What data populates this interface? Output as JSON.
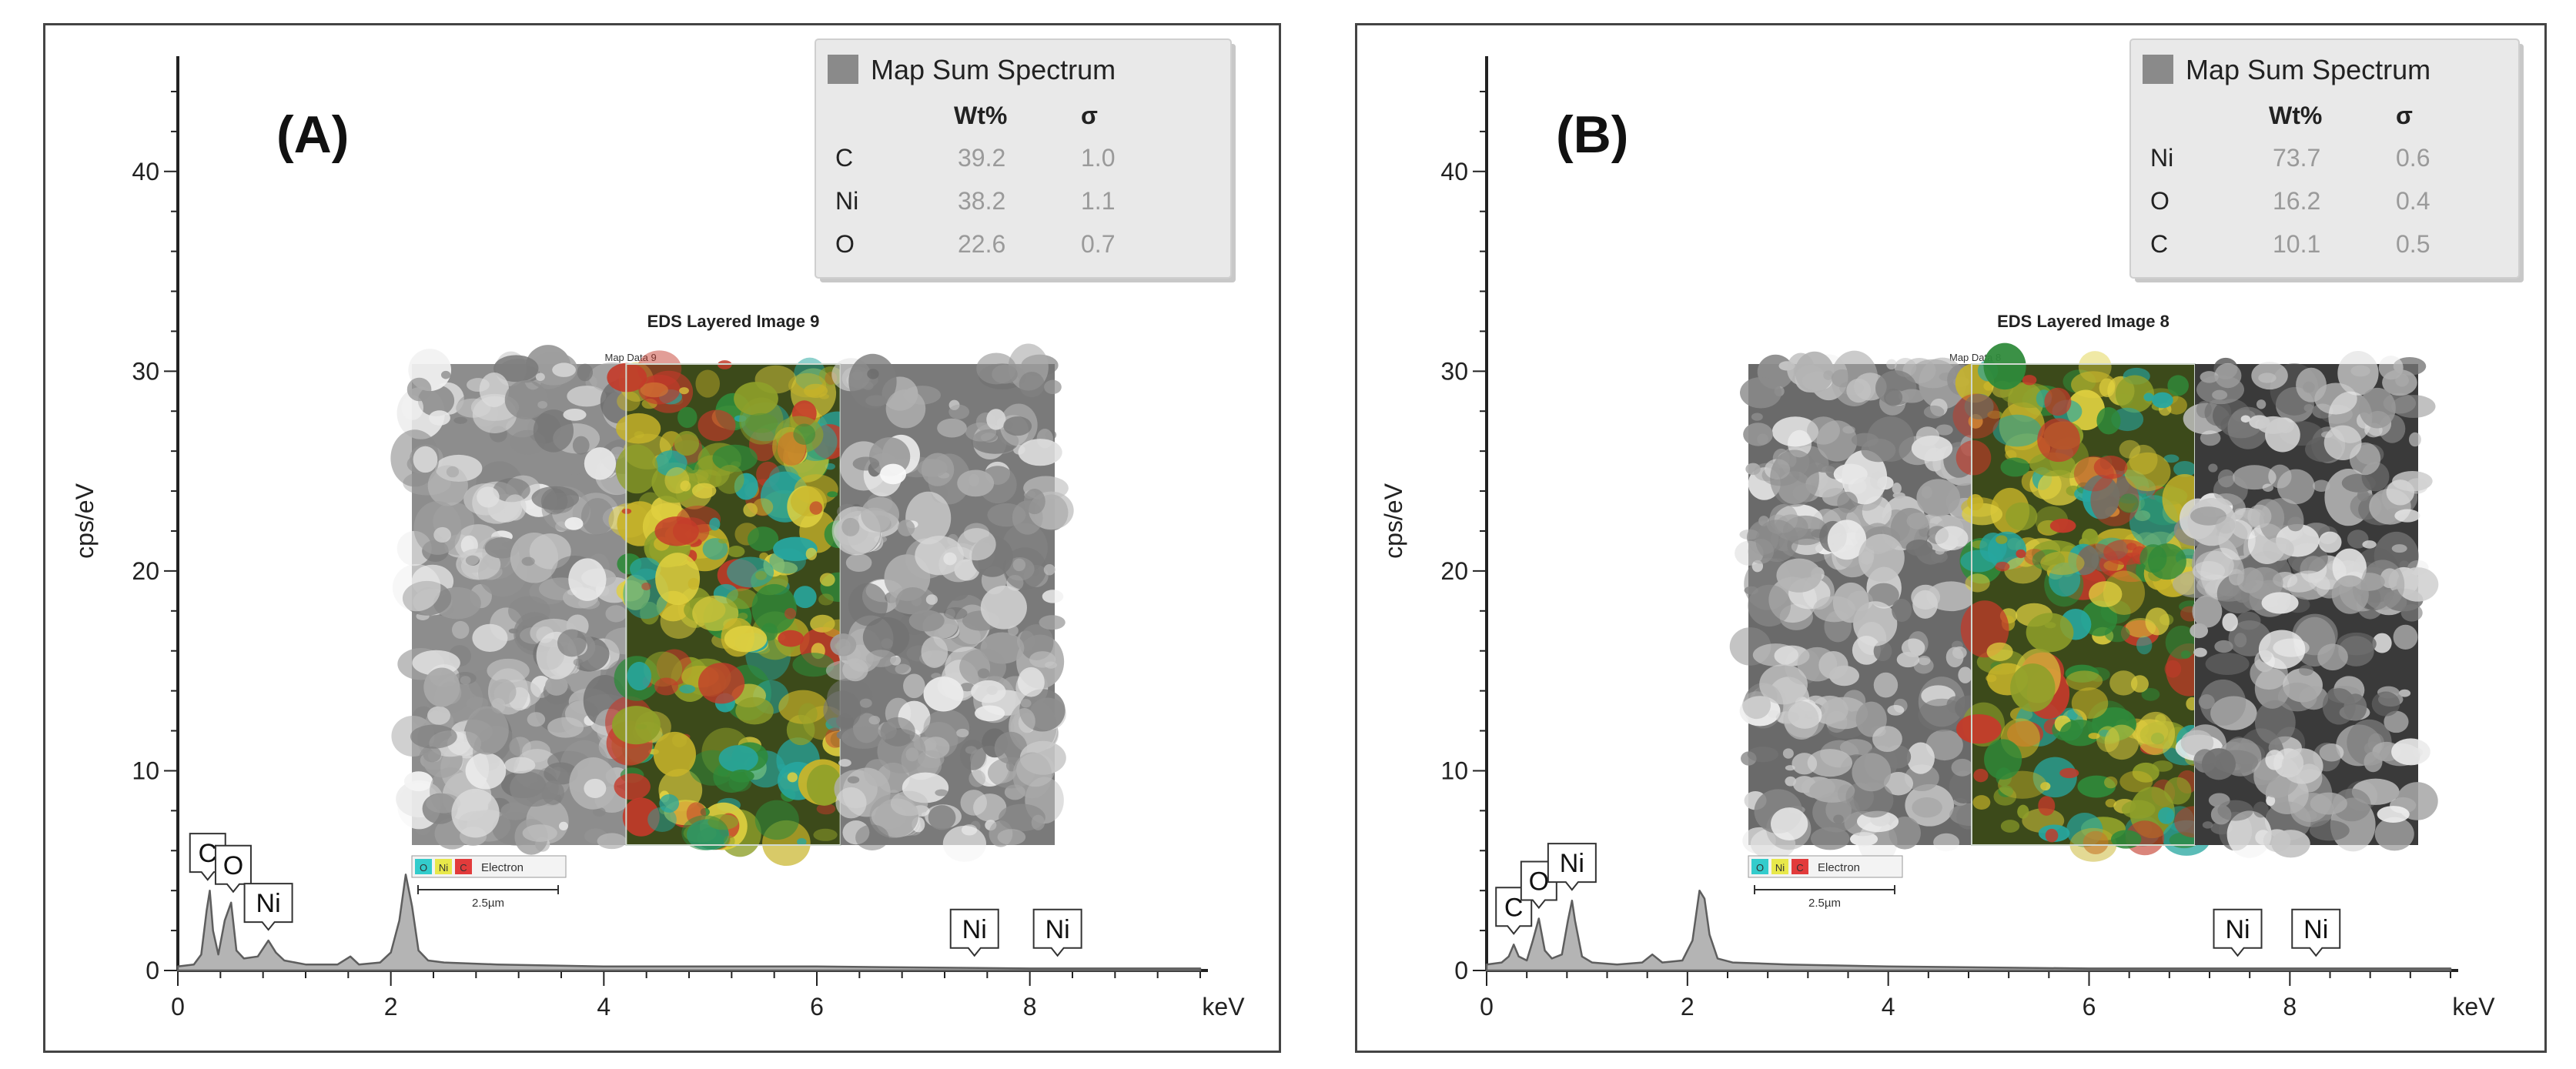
{
  "chart_data": [
    {
      "type": "area",
      "panel_label": "(A)",
      "xlabel": "keV",
      "ylabel": "cps/eV",
      "xlim": [
        0,
        9.6
      ],
      "ylim": [
        0,
        45
      ],
      "xticks": [
        "0",
        "2",
        "4",
        "6",
        "8"
      ],
      "yticks": [
        "0",
        "10",
        "20",
        "30",
        "40"
      ],
      "series": [
        {
          "x": [
            0,
            0.15,
            0.22,
            0.27,
            0.3,
            0.33,
            0.38,
            0.44,
            0.5,
            0.55,
            0.62,
            0.75,
            0.85,
            0.92,
            1.0,
            1.2,
            1.5,
            1.62,
            1.7,
            1.9,
            2.0,
            2.08,
            2.14,
            2.2,
            2.26,
            2.35,
            2.5,
            3.0,
            4.0,
            6.0,
            8.0,
            9.6
          ],
          "y": [
            0.2,
            0.3,
            0.8,
            3.0,
            4.0,
            2.0,
            0.8,
            2.5,
            3.4,
            1.0,
            0.6,
            0.7,
            1.5,
            0.9,
            0.5,
            0.3,
            0.3,
            0.7,
            0.3,
            0.4,
            0.9,
            2.5,
            4.8,
            3.2,
            1.0,
            0.5,
            0.4,
            0.3,
            0.2,
            0.2,
            0.1,
            0.1
          ]
        }
      ],
      "peak_labels": [
        {
          "text": "C",
          "x": 0.28,
          "y": 4.0
        },
        {
          "text": "O",
          "x": 0.52,
          "y": 3.4
        },
        {
          "text": "Ni",
          "x": 0.85,
          "y": 1.5
        },
        {
          "text": "Ni",
          "x": 7.48,
          "y": 0.2
        },
        {
          "text": "Ni",
          "x": 8.26,
          "y": 0.2
        }
      ],
      "legend": {
        "title": "Map Sum Spectrum",
        "headers": [
          "Wt%",
          "σ"
        ],
        "rows": [
          {
            "element": "C",
            "wt": "39.2",
            "sigma": "1.0"
          },
          {
            "element": "Ni",
            "wt": "38.2",
            "sigma": "1.1"
          },
          {
            "element": "O",
            "wt": "22.6",
            "sigma": "0.7"
          }
        ]
      },
      "inset": {
        "title": "EDS Layered Image 9",
        "map_label": "Map Data 9",
        "keys": [
          "O",
          "Ni",
          "C"
        ],
        "key_extra": "Electron",
        "scale": "2.5µm"
      }
    },
    {
      "type": "area",
      "panel_label": "(B)",
      "xlabel": "keV",
      "ylabel": "cps/eV",
      "xlim": [
        0,
        9.6
      ],
      "ylim": [
        0,
        45
      ],
      "xticks": [
        "0",
        "2",
        "4",
        "6",
        "8"
      ],
      "yticks": [
        "0",
        "10",
        "20",
        "30",
        "40"
      ],
      "series": [
        {
          "x": [
            0,
            0.15,
            0.22,
            0.27,
            0.32,
            0.4,
            0.46,
            0.52,
            0.58,
            0.65,
            0.75,
            0.81,
            0.85,
            0.88,
            0.95,
            1.05,
            1.3,
            1.55,
            1.65,
            1.75,
            1.95,
            2.05,
            2.12,
            2.17,
            2.22,
            2.3,
            2.45,
            3.0,
            4.0,
            6.0,
            8.0,
            9.6
          ],
          "y": [
            0.3,
            0.4,
            0.7,
            1.3,
            0.7,
            0.5,
            1.5,
            2.6,
            1.0,
            0.6,
            0.8,
            2.5,
            3.5,
            2.5,
            0.7,
            0.4,
            0.3,
            0.4,
            0.8,
            0.4,
            0.5,
            1.5,
            4.0,
            3.6,
            1.8,
            0.6,
            0.4,
            0.3,
            0.2,
            0.1,
            0.1,
            0.1
          ]
        }
      ],
      "peak_labels": [
        {
          "text": "C",
          "x": 0.27,
          "y": 1.3
        },
        {
          "text": "O",
          "x": 0.52,
          "y": 2.6
        },
        {
          "text": "Ni",
          "x": 0.85,
          "y": 3.5
        },
        {
          "text": "Ni",
          "x": 7.48,
          "y": 0.2
        },
        {
          "text": "Ni",
          "x": 8.26,
          "y": 0.2
        }
      ],
      "legend": {
        "title": "Map Sum Spectrum",
        "headers": [
          "Wt%",
          "σ"
        ],
        "rows": [
          {
            "element": "Ni",
            "wt": "73.7",
            "sigma": "0.6"
          },
          {
            "element": "O",
            "wt": "16.2",
            "sigma": "0.4"
          },
          {
            "element": "C",
            "wt": "10.1",
            "sigma": "0.5"
          }
        ]
      },
      "inset": {
        "title": "EDS Layered Image 8",
        "map_label": "Map Data 8",
        "keys": [
          "O",
          "Ni",
          "C"
        ],
        "key_extra": "Electron",
        "scale": "2.5µm"
      }
    }
  ],
  "colors": {
    "fill": "#b4b4b4",
    "stroke": "#5e5e5e",
    "axis": "#222222",
    "legend_bg": "#e9e9e9",
    "key_O": "#33cccc",
    "key_Ni": "#e8e84a",
    "key_C": "#e23b3b"
  }
}
